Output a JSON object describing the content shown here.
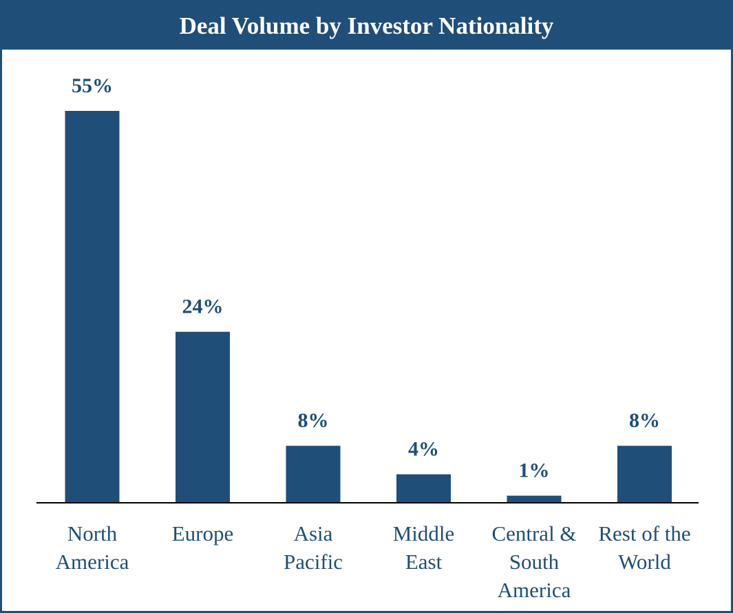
{
  "chart_data": {
    "type": "bar",
    "title": "Deal Volume by Investor Nationality",
    "categories": [
      [
        "North",
        "America"
      ],
      [
        "Europe"
      ],
      [
        "Asia",
        "Pacific"
      ],
      [
        "Middle",
        "East"
      ],
      [
        "Central &",
        "South",
        "America"
      ],
      [
        "Rest of the",
        "World"
      ]
    ],
    "values": [
      55,
      24,
      8,
      4,
      1,
      8
    ],
    "value_labels": [
      "55%",
      "24%",
      "8%",
      "4%",
      "1%",
      "8%"
    ],
    "unit": "%",
    "ylim": [
      0,
      55
    ],
    "xlabel": "",
    "ylabel": "",
    "grid": false,
    "bar_color": "#1f4e79"
  }
}
